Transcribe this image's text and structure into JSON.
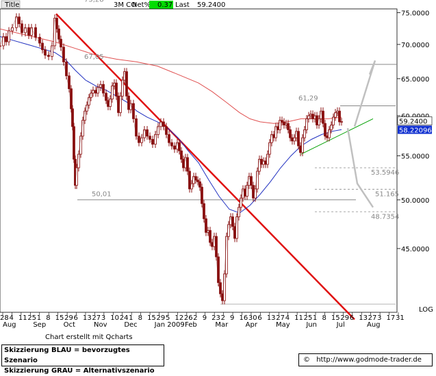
{
  "header": {
    "title_label": "Title",
    "instrument": "3M CO",
    "netpct_label": "Net%",
    "netpct_value": "0.37",
    "last_label": "Last",
    "last_value": "59.2400"
  },
  "chart_data": {
    "type": "candlestick",
    "yscale": "log",
    "ylim": [
      39.2,
      75.6
    ],
    "y_ticks": [
      "75.0000",
      "70.0000",
      "65.0000",
      "60.0000",
      "55.0000",
      "50.0000",
      "45.0000"
    ],
    "y_scale_label": "LOG",
    "x_date_labels": [
      "28",
      "4",
      "11",
      "25",
      "1",
      "8",
      "15",
      "29",
      "6",
      "13",
      "27",
      "3",
      "10",
      "24",
      "1",
      "8",
      "15",
      "29",
      "5",
      "12",
      "26",
      "2",
      "9",
      "23",
      "2",
      "9",
      "16",
      "30",
      "6",
      "13",
      "27",
      "4",
      "11",
      "25",
      "1",
      "8",
      "15",
      "29",
      "6",
      "13",
      "27",
      "3",
      "17",
      "31"
    ],
    "x_month_labels": [
      "Aug",
      "Sep",
      "Oct",
      "Nov",
      "Dec",
      "Jan 2009",
      "Feb",
      "Mar",
      "Apr",
      "May",
      "Jun",
      "Jul",
      "Aug"
    ],
    "annotations": [
      "75,28",
      "67,05",
      "61,29",
      "50,01",
      "53.5946",
      "51.165",
      "48.7354"
    ],
    "horizontal_levels": [
      67.05,
      61.29,
      50.01,
      53.5946,
      51.165,
      48.7354,
      39.9
    ],
    "last_price_tag": "59.2400",
    "ma_price_tag": "58.22096",
    "price_path": [
      [
        0,
        69.8
      ],
      [
        5,
        71.2
      ],
      [
        9,
        70.4
      ],
      [
        13,
        72.1
      ],
      [
        18,
        72.6
      ],
      [
        24,
        74.3
      ],
      [
        28,
        73.2
      ],
      [
        32,
        71.8
      ],
      [
        37,
        72.6
      ],
      [
        42,
        71.4
      ],
      [
        46,
        72.6
      ],
      [
        52,
        71.1
      ],
      [
        58,
        70.2
      ],
      [
        62,
        69.2
      ],
      [
        66,
        68.4
      ],
      [
        71,
        68.2
      ],
      [
        76,
        69.8
      ],
      [
        80,
        74.1
      ],
      [
        83,
        72.4
      ],
      [
        86,
        70.8
      ],
      [
        89,
        69.6
      ],
      [
        93,
        67.4
      ],
      [
        97,
        65.4
      ],
      [
        101,
        63.6
      ],
      [
        104,
        60.9
      ],
      [
        106,
        58.6
      ],
      [
        108,
        54.6
      ],
      [
        110,
        51.6
      ],
      [
        112,
        53.6
      ],
      [
        115,
        55.2
      ],
      [
        118,
        57.4
      ],
      [
        121,
        59.4
      ],
      [
        124,
        60.6
      ],
      [
        127,
        61.4
      ],
      [
        130,
        62.4
      ],
      [
        133,
        63.0
      ],
      [
        136,
        63.4
      ],
      [
        140,
        63.0
      ],
      [
        143,
        63.8
      ],
      [
        147,
        64.2
      ],
      [
        151,
        63.0
      ],
      [
        155,
        62.0
      ],
      [
        158,
        61.2
      ],
      [
        161,
        62.2
      ],
      [
        164,
        64.0
      ],
      [
        167,
        64.4
      ],
      [
        170,
        62.6
      ],
      [
        173,
        60.4
      ],
      [
        176,
        62.6
      ],
      [
        179,
        64.8
      ],
      [
        182,
        66.0
      ],
      [
        185,
        62.6
      ],
      [
        188,
        60.8
      ],
      [
        191,
        61.6
      ],
      [
        195,
        59.6
      ],
      [
        199,
        57.4
      ],
      [
        203,
        56.6
      ],
      [
        207,
        57.2
      ],
      [
        211,
        58.2
      ],
      [
        215,
        57.4
      ],
      [
        219,
        57.0
      ],
      [
        223,
        56.4
      ],
      [
        227,
        57.6
      ],
      [
        231,
        58.6
      ],
      [
        235,
        59.2
      ],
      [
        239,
        58.6
      ],
      [
        243,
        57.6
      ],
      [
        247,
        56.6
      ],
      [
        251,
        56.2
      ],
      [
        255,
        55.8
      ],
      [
        259,
        56.6
      ],
      [
        262,
        55.6
      ],
      [
        265,
        54.6
      ],
      [
        268,
        53.6
      ],
      [
        271,
        54.8
      ],
      [
        274,
        53.2
      ],
      [
        277,
        51.2
      ],
      [
        280,
        51.8
      ],
      [
        283,
        52.6
      ],
      [
        286,
        52.2
      ],
      [
        289,
        52.0
      ],
      [
        292,
        51.4
      ],
      [
        295,
        49.6
      ],
      [
        298,
        48.0
      ],
      [
        301,
        46.6
      ],
      [
        304,
        46.8
      ],
      [
        307,
        45.6
      ],
      [
        310,
        45.2
      ],
      [
        313,
        46.2
      ],
      [
        316,
        44.2
      ],
      [
        319,
        41.8
      ],
      [
        322,
        40.8
      ],
      [
        325,
        40.2
      ],
      [
        328,
        42.6
      ],
      [
        331,
        46.2
      ],
      [
        334,
        47.4
      ],
      [
        337,
        48.2
      ],
      [
        340,
        47.2
      ],
      [
        343,
        46.0
      ],
      [
        346,
        48.2
      ],
      [
        349,
        49.2
      ],
      [
        352,
        50.2
      ],
      [
        355,
        51.2
      ],
      [
        358,
        50.4
      ],
      [
        361,
        51.6
      ],
      [
        364,
        52.6
      ],
      [
        367,
        51.6
      ],
      [
        370,
        50.2
      ],
      [
        373,
        51.2
      ],
      [
        376,
        53.2
      ],
      [
        379,
        54.6
      ],
      [
        382,
        54.0
      ],
      [
        385,
        54.4
      ],
      [
        388,
        54.0
      ],
      [
        391,
        55.2
      ],
      [
        394,
        56.6
      ],
      [
        397,
        57.6
      ],
      [
        400,
        57.2
      ],
      [
        403,
        58.6
      ],
      [
        406,
        58.2
      ],
      [
        409,
        59.4
      ],
      [
        412,
        59.2
      ],
      [
        415,
        58.8
      ],
      [
        418,
        59.0
      ],
      [
        421,
        58.2
      ],
      [
        424,
        57.2
      ],
      [
        427,
        56.8
      ],
      [
        430,
        57.2
      ],
      [
        433,
        58.0
      ],
      [
        436,
        56.2
      ],
      [
        439,
        55.4
      ],
      [
        442,
        57.2
      ],
      [
        445,
        58.2
      ],
      [
        448,
        59.6
      ],
      [
        451,
        60.0
      ],
      [
        454,
        60.2
      ],
      [
        457,
        59.6
      ],
      [
        460,
        60.0
      ],
      [
        463,
        58.8
      ],
      [
        466,
        59.6
      ],
      [
        469,
        60.6
      ],
      [
        472,
        59.0
      ],
      [
        475,
        57.4
      ],
      [
        478,
        57.2
      ],
      [
        481,
        58.2
      ],
      [
        484,
        58.8
      ],
      [
        487,
        59.8
      ],
      [
        490,
        60.4
      ],
      [
        493,
        60.6
      ],
      [
        496,
        59.2
      ],
      [
        499,
        59.24
      ]
    ],
    "ma_blue_path": [
      [
        0,
        71.2
      ],
      [
        20,
        70.6
      ],
      [
        40,
        70.0
      ],
      [
        60,
        69.4
      ],
      [
        80,
        68.8
      ],
      [
        95,
        67.8
      ],
      [
        110,
        66.2
      ],
      [
        125,
        64.8
      ],
      [
        140,
        64.0
      ],
      [
        155,
        63.4
      ],
      [
        170,
        62.6
      ],
      [
        185,
        61.8
      ],
      [
        200,
        60.6
      ],
      [
        215,
        59.8
      ],
      [
        230,
        59.2
      ],
      [
        245,
        58.4
      ],
      [
        260,
        57.2
      ],
      [
        275,
        55.6
      ],
      [
        290,
        54.2
      ],
      [
        305,
        52.2
      ],
      [
        320,
        50.4
      ],
      [
        335,
        49.0
      ],
      [
        350,
        48.6
      ],
      [
        365,
        49.4
      ],
      [
        380,
        50.6
      ],
      [
        395,
        52.0
      ],
      [
        410,
        53.6
      ],
      [
        425,
        55.0
      ],
      [
        440,
        56.2
      ],
      [
        455,
        57.0
      ],
      [
        470,
        57.6
      ],
      [
        485,
        58.0
      ],
      [
        499,
        58.22
      ]
    ],
    "ma_red_path": [
      [
        0,
        72.4
      ],
      [
        40,
        71.4
      ],
      [
        80,
        70.4
      ],
      [
        110,
        69.4
      ],
      [
        140,
        68.4
      ],
      [
        170,
        67.8
      ],
      [
        200,
        67.4
      ],
      [
        230,
        66.8
      ],
      [
        260,
        65.6
      ],
      [
        290,
        64.4
      ],
      [
        310,
        63.2
      ],
      [
        330,
        61.8
      ],
      [
        350,
        60.4
      ],
      [
        365,
        59.6
      ],
      [
        380,
        59.2
      ],
      [
        400,
        59.0
      ],
      [
        420,
        59.2
      ],
      [
        440,
        59.6
      ],
      [
        460,
        59.6
      ],
      [
        480,
        59.6
      ],
      [
        499,
        59.8
      ]
    ],
    "trendline_red": [
      [
        82,
        74.8
      ],
      [
        518,
        38.6
      ]
    ],
    "trendline_green": [
      [
        440,
        55.2
      ],
      [
        545,
        59.6
      ]
    ],
    "scenario_gray_up": [
      [
        518,
        58.6
      ],
      [
        548,
        67.6
      ],
      [
        540,
        65.6
      ]
    ],
    "scenario_gray_down": [
      [
        508,
        58.4
      ],
      [
        522,
        51.8
      ],
      [
        545,
        49.2
      ]
    ]
  },
  "footer": {
    "credit": "Chart erstellt mit Qcharts",
    "legend_line_1": "Skizzierung BLAU = bevorzugtes Szenario",
    "legend_line_2": "Skizzierung GRAU = Alternativszenario",
    "copyright_symbol": "©",
    "website": "http://www.godmode-trader.de"
  }
}
